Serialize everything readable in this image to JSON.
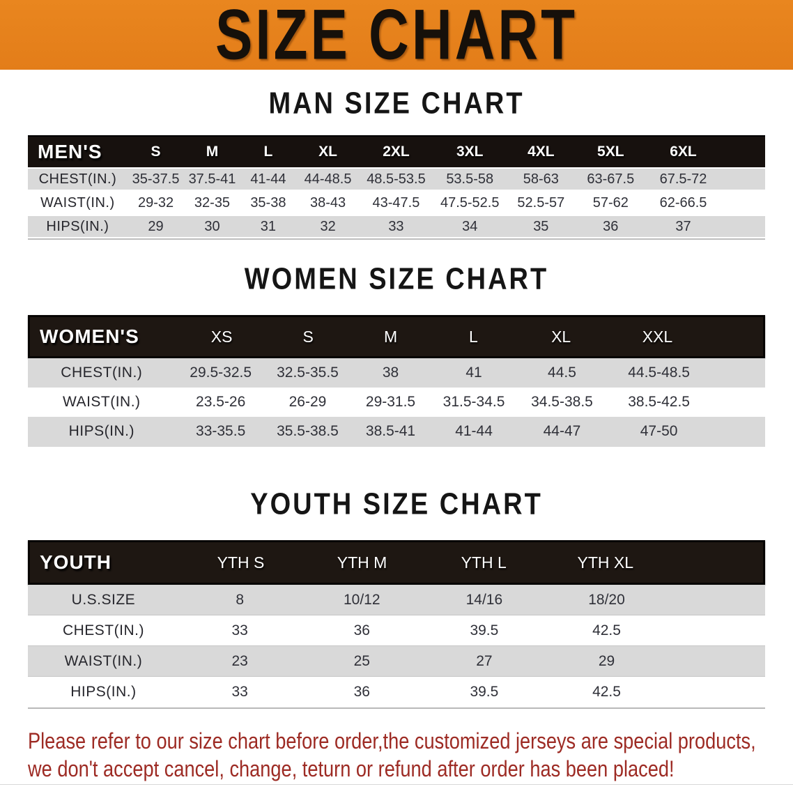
{
  "banner": {
    "title": "SIZE CHART",
    "bg_color": "#E8831E",
    "title_color": "#16100A"
  },
  "colors": {
    "header_bar": "#17110E",
    "row_gray": "#D9D9D9",
    "row_white": "#FFFFFF",
    "disclaimer_text": "#9D2B24"
  },
  "sections": [
    {
      "id": "men",
      "title": "MAN SIZE CHART",
      "table": {
        "corner": "MEN'S",
        "sizes": [
          "S",
          "M",
          "L",
          "XL",
          "2XL",
          "3XL",
          "4XL",
          "5XL",
          "6XL"
        ],
        "rows": [
          {
            "label": "CHEST(IN.)",
            "values": [
              "35-37.5",
              "37.5-41",
              "41-44",
              "44-48.5",
              "48.5-53.5",
              "53.5-58",
              "58-63",
              "63-67.5",
              "67.5-72"
            ]
          },
          {
            "label": "WAIST(IN.)",
            "values": [
              "29-32",
              "32-35",
              "35-38",
              "38-43",
              "43-47.5",
              "47.5-52.5",
              "52.5-57",
              "57-62",
              "62-66.5"
            ]
          },
          {
            "label": "HIPS(IN.)",
            "values": [
              "29",
              "30",
              "31",
              "32",
              "33",
              "34",
              "35",
              "36",
              "37"
            ]
          }
        ]
      }
    },
    {
      "id": "women",
      "title": "WOMEN SIZE CHART",
      "table": {
        "corner": "WOMEN'S",
        "sizes": [
          "XS",
          "S",
          "M",
          "L",
          "XL",
          "XXL"
        ],
        "rows": [
          {
            "label": "CHEST(IN.)",
            "values": [
              "29.5-32.5",
              "32.5-35.5",
              "38",
              "41",
              "44.5",
              "44.5-48.5"
            ]
          },
          {
            "label": "WAIST(IN.)",
            "values": [
              "23.5-26",
              "26-29",
              "29-31.5",
              "31.5-34.5",
              "34.5-38.5",
              "38.5-42.5"
            ]
          },
          {
            "label": "HIPS(IN.)",
            "values": [
              "33-35.5",
              "35.5-38.5",
              "38.5-41",
              "41-44",
              "44-47",
              "47-50"
            ]
          }
        ]
      }
    },
    {
      "id": "youth",
      "title": "YOUTH SIZE CHART",
      "table": {
        "corner": "YOUTH",
        "sizes": [
          "YTH S",
          "YTH M",
          "YTH L",
          "YTH XL"
        ],
        "rows": [
          {
            "label": "U.S.SIZE",
            "values": [
              "8",
              "10/12",
              "14/16",
              "18/20"
            ]
          },
          {
            "label": "CHEST(IN.)",
            "values": [
              "33",
              "36",
              "39.5",
              "42.5"
            ]
          },
          {
            "label": "WAIST(IN.)",
            "values": [
              "23",
              "25",
              "27",
              "29"
            ]
          },
          {
            "label": "HIPS(IN.)",
            "values": [
              "33",
              "36",
              "39.5",
              "42.5"
            ]
          }
        ]
      }
    }
  ],
  "disclaimer": {
    "line1": "Please refer to our size chart before order,the customized jerseys are special products,",
    "line2": "we don't accept cancel, change, teturn or refund after order has been placed!"
  }
}
